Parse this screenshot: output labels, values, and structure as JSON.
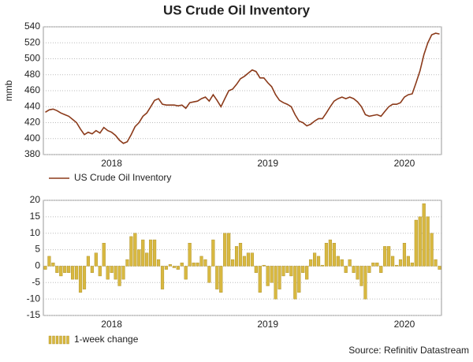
{
  "source": "Source: Refinitiv Datastream",
  "chart_data": [
    {
      "type": "line",
      "title": "US Crude Oil Inventory",
      "y_label": "mmb",
      "categories": [
        null,
        null,
        null,
        null,
        null,
        null,
        null,
        null,
        null,
        null,
        null,
        null,
        null,
        null,
        null,
        null,
        null,
        "2018",
        null,
        null,
        null,
        null,
        null,
        null,
        null,
        null,
        null,
        null,
        null,
        null,
        null,
        null,
        null,
        null,
        null,
        null,
        null,
        null,
        null,
        null,
        null,
        null,
        null,
        null,
        null,
        null,
        null,
        null,
        null,
        null,
        null,
        null,
        null,
        null,
        null,
        null,
        null,
        "2019",
        null,
        null,
        null,
        null,
        null,
        null,
        null,
        null,
        null,
        null,
        null,
        null,
        null,
        null,
        null,
        null,
        null,
        null,
        null,
        null,
        null,
        null,
        null,
        null,
        null,
        null,
        null,
        null,
        null,
        null,
        null,
        null,
        null,
        null,
        "2020",
        null,
        null,
        null,
        null,
        null,
        null,
        null,
        null,
        null
      ],
      "series": [
        {
          "name": "US Crude Oil Inventory",
          "color": "#8b3a1a",
          "values": [
            433,
            436,
            437,
            435,
            432,
            430,
            428,
            424,
            420,
            412,
            405,
            408,
            406,
            410,
            407,
            414,
            410,
            408,
            404,
            398,
            394,
            396,
            405,
            415,
            420,
            428,
            432,
            440,
            448,
            450,
            443,
            442,
            442,
            442,
            441,
            442,
            438,
            445,
            446,
            447,
            450,
            452,
            447,
            455,
            448,
            440,
            450,
            460,
            462,
            468,
            475,
            478,
            482,
            486,
            484,
            476,
            476,
            470,
            465,
            455,
            448,
            445,
            443,
            440,
            430,
            422,
            420,
            416,
            418,
            422,
            425,
            425,
            432,
            440,
            447,
            450,
            452,
            450,
            452,
            450,
            446,
            440,
            430,
            428,
            429,
            430,
            428,
            434,
            440,
            443,
            443,
            445,
            452,
            455,
            456,
            470,
            485,
            505,
            520,
            530,
            532,
            531
          ]
        }
      ],
      "ylim": [
        380,
        540
      ],
      "yticks": [
        380,
        400,
        420,
        440,
        460,
        480,
        500,
        520,
        540
      ],
      "grid": true
    },
    {
      "type": "bar",
      "categories": [
        null,
        null,
        null,
        null,
        null,
        null,
        null,
        null,
        null,
        null,
        null,
        null,
        null,
        null,
        null,
        null,
        null,
        "2018",
        null,
        null,
        null,
        null,
        null,
        null,
        null,
        null,
        null,
        null,
        null,
        null,
        null,
        null,
        null,
        null,
        null,
        null,
        null,
        null,
        null,
        null,
        null,
        null,
        null,
        null,
        null,
        null,
        null,
        null,
        null,
        null,
        null,
        null,
        null,
        null,
        null,
        null,
        null,
        "2019",
        null,
        null,
        null,
        null,
        null,
        null,
        null,
        null,
        null,
        null,
        null,
        null,
        null,
        null,
        null,
        null,
        null,
        null,
        null,
        null,
        null,
        null,
        null,
        null,
        null,
        null,
        null,
        null,
        null,
        null,
        null,
        null,
        null,
        null,
        "2020",
        null,
        null,
        null,
        null,
        null,
        null,
        null,
        null,
        null
      ],
      "series": [
        {
          "name": "1-week change",
          "color": "#d8b840",
          "values": [
            -1,
            3,
            1,
            -2,
            -3,
            -2,
            -2,
            -4,
            -4,
            -8,
            -7,
            3,
            -2,
            4,
            -3,
            7,
            -4,
            -2,
            -4,
            -6,
            -4,
            2,
            9,
            10,
            5,
            8,
            4,
            8,
            8,
            2,
            -7,
            -1,
            0.5,
            -0.5,
            -1,
            1,
            -4,
            7,
            1,
            1,
            3,
            2,
            -5,
            8,
            -7,
            -8,
            10,
            10,
            2,
            6,
            7,
            3,
            4,
            4,
            -2,
            -8,
            0.3,
            -6,
            -5,
            -10,
            -7,
            -3,
            -2,
            -3,
            -10,
            -8,
            -2,
            -4,
            2,
            4,
            3,
            0.3,
            7,
            8,
            7,
            3,
            2,
            -2,
            2,
            -2,
            -4,
            -6,
            -10,
            -2,
            1,
            1,
            -2,
            6,
            6,
            3,
            0.3,
            2,
            7,
            3,
            1,
            14,
            15,
            19,
            15,
            10,
            2,
            -1
          ]
        }
      ],
      "ylim": [
        -15,
        20
      ],
      "yticks": [
        -15,
        -10,
        -5,
        0,
        5,
        10,
        15,
        20
      ],
      "grid": true
    }
  ]
}
